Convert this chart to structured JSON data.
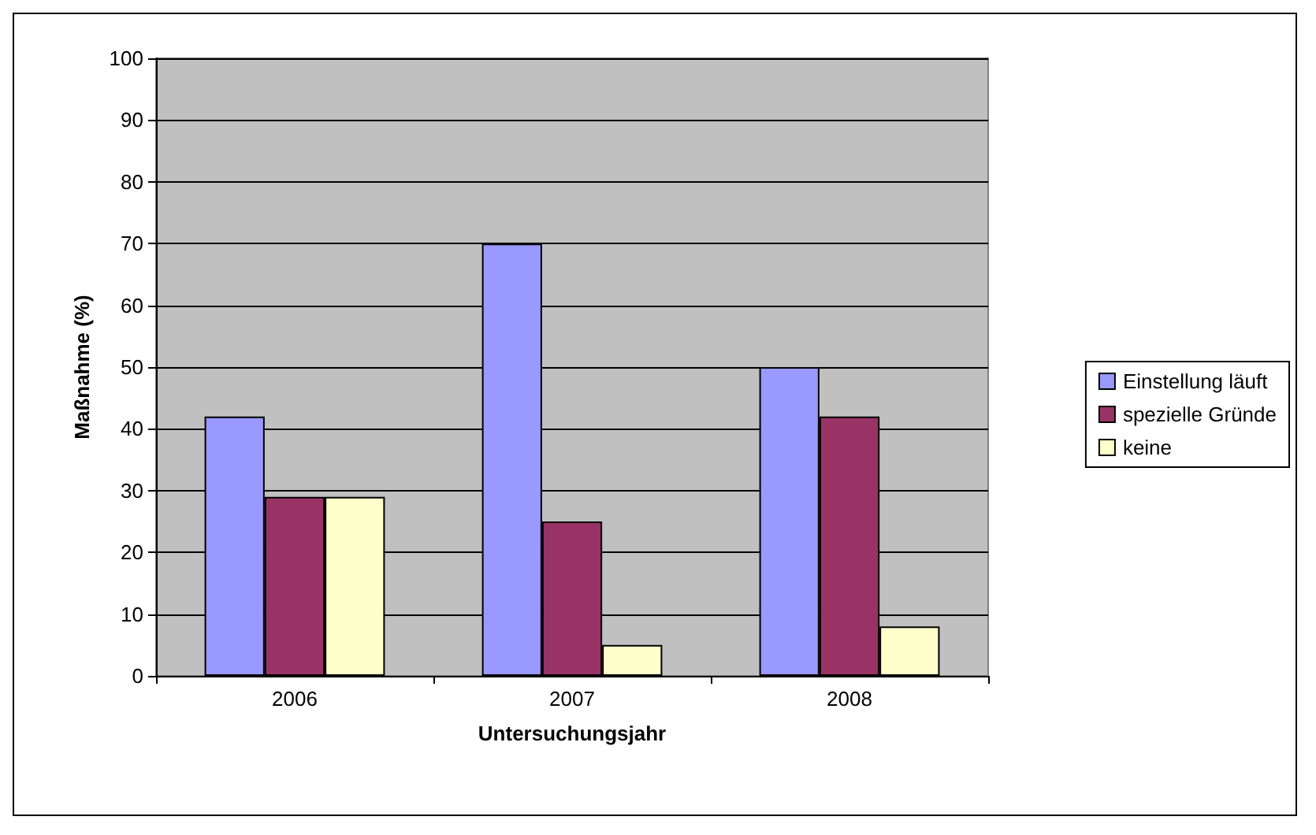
{
  "chart_data": {
    "type": "bar",
    "xlabel": "Untersuchungsjahr",
    "ylabel": "Maßnahme (%)",
    "categories": [
      "2006",
      "2007",
      "2008"
    ],
    "series": [
      {
        "name": "Einstellung läuft",
        "color": "#9999ff",
        "values": [
          42,
          70,
          50
        ]
      },
      {
        "name": "spezielle Gründe",
        "color": "#993366",
        "values": [
          29,
          25,
          42
        ]
      },
      {
        "name": "keine",
        "color": "#ffffcc",
        "values": [
          29,
          5,
          8
        ]
      }
    ],
    "ylim": [
      0,
      100
    ],
    "yticks": [
      0,
      10,
      20,
      30,
      40,
      50,
      60,
      70,
      80,
      90,
      100
    ],
    "grid": "y",
    "legend": "right"
  }
}
